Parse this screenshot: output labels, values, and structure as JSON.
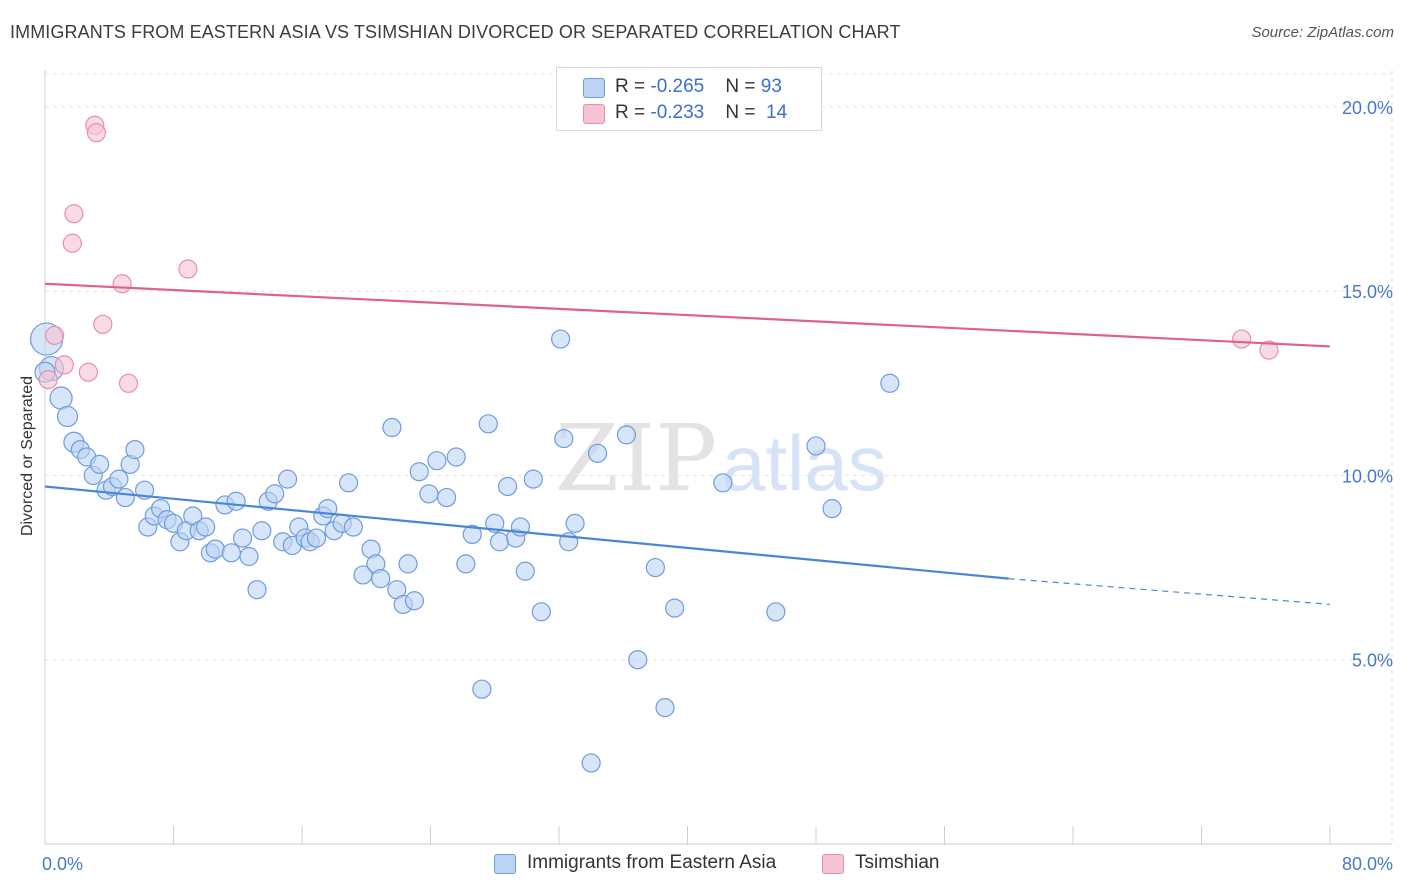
{
  "title": "IMMIGRANTS FROM EASTERN ASIA VS TSIMSHIAN DIVORCED OR SEPARATED CORRELATION CHART",
  "source": "Source: ZipAtlas.com",
  "watermark": {
    "zip": "ZIP",
    "atlas": "atlas"
  },
  "colors": {
    "blue": "#4a86d8",
    "blue_fill": "#bcd3f3",
    "pink": "#e0628a",
    "pink_fill": "#f6c3d3",
    "tick": "#4a78c9"
  },
  "legend": {
    "rows": [
      {
        "r_label": "R = ",
        "r_value": "-0.265",
        "n_label": "N = ",
        "n_value": "93"
      },
      {
        "r_label": "R = ",
        "r_value": "-0.233",
        "n_label": "N = ",
        "n_value": "14"
      }
    ]
  },
  "bottom_legend": [
    "Immigrants from Eastern Asia",
    "Tsimshian"
  ],
  "chart_data": {
    "type": "scatter",
    "title": "IMMIGRANTS FROM EASTERN ASIA VS TSIMSHIAN DIVORCED OR SEPARATED CORRELATION CHART",
    "xlabel": "",
    "ylabel": "Divorced or Separated",
    "xlim": [
      0,
      80
    ],
    "ylim": [
      0,
      21
    ],
    "x_tick_labels": [
      "0.0%",
      "80.0%"
    ],
    "y_ticks": [
      5,
      10,
      15,
      20
    ],
    "y_tick_labels": [
      "5.0%",
      "10.0%",
      "15.0%",
      "20.0%"
    ],
    "grid": true,
    "legend_position": "top-center",
    "series": [
      {
        "name": "Immigrants from Eastern Asia",
        "color": "#4a86d8",
        "trend": {
          "x": [
            0,
            60
          ],
          "y": [
            9.7,
            7.2
          ],
          "dashed_to": [
            80,
            6.5
          ]
        },
        "points": [
          [
            0.1,
            13.7,
            16
          ],
          [
            0.4,
            12.9,
            12
          ],
          [
            1.0,
            12.1,
            11
          ],
          [
            1.4,
            11.6,
            10
          ],
          [
            1.8,
            10.9,
            10
          ],
          [
            2.2,
            10.7,
            9
          ],
          [
            2.6,
            10.5,
            9
          ],
          [
            3.0,
            10.0,
            9
          ],
          [
            3.4,
            10.3,
            9
          ],
          [
            3.8,
            9.6,
            9
          ],
          [
            4.2,
            9.7,
            9
          ],
          [
            4.6,
            9.9,
            9
          ],
          [
            5.0,
            9.4,
            9
          ],
          [
            5.3,
            10.3,
            9
          ],
          [
            5.6,
            10.7,
            9
          ],
          [
            6.2,
            9.6,
            9
          ],
          [
            6.4,
            8.6,
            9
          ],
          [
            6.8,
            8.9,
            9
          ],
          [
            7.2,
            9.1,
            9
          ],
          [
            7.6,
            8.8,
            9
          ],
          [
            8.0,
            8.7,
            9
          ],
          [
            8.4,
            8.2,
            9
          ],
          [
            8.8,
            8.5,
            9
          ],
          [
            9.2,
            8.9,
            9
          ],
          [
            9.6,
            8.5,
            9
          ],
          [
            10.0,
            8.6,
            9
          ],
          [
            10.3,
            7.9,
            9
          ],
          [
            10.6,
            8.0,
            9
          ],
          [
            11.2,
            9.2,
            9
          ],
          [
            11.6,
            7.9,
            9
          ],
          [
            11.9,
            9.3,
            9
          ],
          [
            12.3,
            8.3,
            9
          ],
          [
            12.7,
            7.8,
            9
          ],
          [
            13.2,
            6.9,
            9
          ],
          [
            13.5,
            8.5,
            9
          ],
          [
            13.9,
            9.3,
            9
          ],
          [
            14.3,
            9.5,
            9
          ],
          [
            14.8,
            8.2,
            9
          ],
          [
            15.1,
            9.9,
            9
          ],
          [
            15.4,
            8.1,
            9
          ],
          [
            15.8,
            8.6,
            9
          ],
          [
            16.2,
            8.3,
            9
          ],
          [
            16.5,
            8.2,
            9
          ],
          [
            16.9,
            8.3,
            9
          ],
          [
            17.3,
            8.9,
            9
          ],
          [
            17.6,
            9.1,
            9
          ],
          [
            18.0,
            8.5,
            9
          ],
          [
            18.5,
            8.7,
            9
          ],
          [
            18.9,
            9.8,
            9
          ],
          [
            19.2,
            8.6,
            9
          ],
          [
            19.8,
            7.3,
            9
          ],
          [
            20.3,
            8.0,
            9
          ],
          [
            20.6,
            7.6,
            9
          ],
          [
            20.9,
            7.2,
            9
          ],
          [
            21.6,
            11.3,
            9
          ],
          [
            21.9,
            6.9,
            9
          ],
          [
            22.3,
            6.5,
            9
          ],
          [
            22.6,
            7.6,
            9
          ],
          [
            23.0,
            6.6,
            9
          ],
          [
            23.3,
            10.1,
            9
          ],
          [
            23.9,
            9.5,
            9
          ],
          [
            24.4,
            10.4,
            9
          ],
          [
            25.0,
            9.4,
            9
          ],
          [
            25.6,
            10.5,
            9
          ],
          [
            26.2,
            7.6,
            9
          ],
          [
            26.6,
            8.4,
            9
          ],
          [
            27.2,
            4.2,
            9
          ],
          [
            27.6,
            11.4,
            9
          ],
          [
            28.0,
            8.7,
            9
          ],
          [
            28.3,
            8.2,
            9
          ],
          [
            28.8,
            9.7,
            9
          ],
          [
            29.3,
            8.3,
            9
          ],
          [
            29.6,
            8.6,
            9
          ],
          [
            29.9,
            7.4,
            9
          ],
          [
            30.4,
            9.9,
            9
          ],
          [
            30.9,
            6.3,
            9
          ],
          [
            32.1,
            13.7,
            9
          ],
          [
            32.3,
            11.0,
            9
          ],
          [
            32.6,
            8.2,
            9
          ],
          [
            33.0,
            8.7,
            9
          ],
          [
            34.0,
            2.2,
            9
          ],
          [
            34.4,
            10.6,
            9
          ],
          [
            36.2,
            11.1,
            9
          ],
          [
            36.9,
            5.0,
            9
          ],
          [
            38.0,
            7.5,
            9
          ],
          [
            38.6,
            3.7,
            9
          ],
          [
            39.2,
            6.4,
            9
          ],
          [
            42.2,
            9.8,
            9
          ],
          [
            45.5,
            6.3,
            9
          ],
          [
            48.0,
            10.8,
            9
          ],
          [
            49.0,
            9.1,
            9
          ],
          [
            52.6,
            12.5,
            9
          ],
          [
            0.0,
            12.8,
            10
          ]
        ]
      },
      {
        "name": "Tsimshian",
        "color": "#e0628a",
        "trend": {
          "x": [
            0,
            80
          ],
          "y": [
            15.2,
            13.5
          ]
        },
        "points": [
          [
            0.2,
            12.6,
            9
          ],
          [
            0.6,
            13.8,
            9
          ],
          [
            1.2,
            13.0,
            9
          ],
          [
            1.7,
            16.3,
            9
          ],
          [
            1.8,
            17.1,
            9
          ],
          [
            2.7,
            12.8,
            9
          ],
          [
            3.1,
            19.5,
            9
          ],
          [
            3.2,
            19.3,
            9
          ],
          [
            3.6,
            14.1,
            9
          ],
          [
            4.8,
            15.2,
            9
          ],
          [
            5.2,
            12.5,
            9
          ],
          [
            8.9,
            15.6,
            9
          ],
          [
            74.5,
            13.7,
            9
          ],
          [
            76.2,
            13.4,
            9
          ]
        ]
      }
    ]
  }
}
